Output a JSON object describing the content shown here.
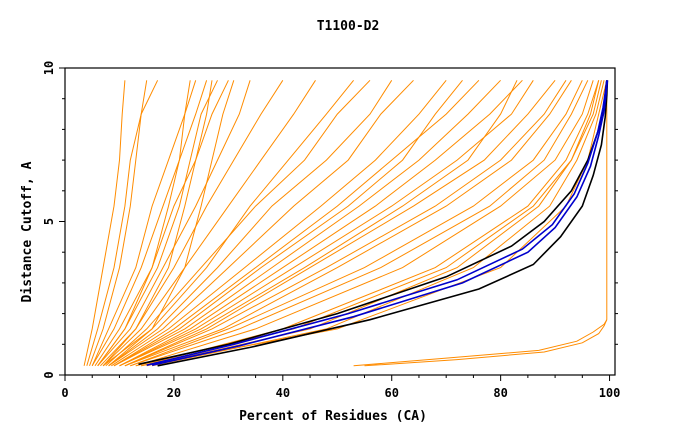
{
  "chart_data": {
    "type": "line",
    "title": "T1100-D2",
    "xlabel": "Percent of Residues (CA)",
    "ylabel": "Distance Cutoff, A",
    "xlim": [
      0,
      101
    ],
    "ylim": [
      0,
      10
    ],
    "x_ticks": [
      "0",
      "20",
      "40",
      "60",
      "80",
      "100"
    ],
    "y_ticks": [
      "0",
      "5",
      "10"
    ],
    "grid": false,
    "legend": "none",
    "colors": {
      "models": "#ff8c00",
      "highlight_black": "#000000",
      "highlight_blue": "#0000cc",
      "axes": "#000000"
    },
    "series": [
      {
        "role": "model",
        "color": "#ff8c00",
        "x": [
          4,
          6,
          9,
          11,
          12,
          14,
          17
        ],
        "y": [
          0.3,
          1.5,
          3.5,
          5.5,
          7.0,
          8.5,
          9.6
        ]
      },
      {
        "role": "model",
        "color": "#ff8c00",
        "x": [
          3.5,
          5,
          7,
          9,
          10,
          10.5,
          11
        ],
        "y": [
          0.3,
          1.5,
          3.5,
          5.5,
          7.0,
          8.5,
          9.6
        ]
      },
      {
        "role": "model",
        "color": "#ff8c00",
        "x": [
          4.5,
          7,
          10,
          12,
          13,
          14,
          15
        ],
        "y": [
          0.3,
          1.5,
          3.5,
          5.5,
          7.0,
          8.5,
          9.6
        ]
      },
      {
        "role": "model",
        "color": "#ff8c00",
        "x": [
          5,
          8,
          13,
          16,
          19,
          22,
          24
        ],
        "y": [
          0.3,
          1.5,
          3.5,
          5.5,
          7.0,
          8.5,
          9.6
        ]
      },
      {
        "role": "model",
        "color": "#ff8c00",
        "x": [
          5,
          9,
          14,
          18,
          21,
          24,
          26
        ],
        "y": [
          0.3,
          1.5,
          3.5,
          5.5,
          7.0,
          8.5,
          9.6
        ]
      },
      {
        "role": "model",
        "color": "#ff8c00",
        "x": [
          5.5,
          10,
          16,
          20,
          24,
          27,
          30
        ],
        "y": [
          0.3,
          1.5,
          3.5,
          5.5,
          7.0,
          8.5,
          9.6
        ]
      },
      {
        "role": "model",
        "color": "#ff8c00",
        "x": [
          6,
          11,
          17,
          21,
          23,
          25,
          28
        ],
        "y": [
          0.3,
          1.5,
          3.5,
          5.5,
          7.0,
          8.5,
          9.6
        ]
      },
      {
        "role": "model",
        "color": "#ff8c00",
        "x": [
          6,
          12,
          18,
          24,
          28,
          32,
          34
        ],
        "y": [
          0.3,
          1.5,
          3.5,
          5.5,
          7.0,
          8.5,
          9.6
        ]
      },
      {
        "role": "model",
        "color": "#ff8c00",
        "x": [
          6.5,
          13,
          20,
          26,
          31,
          36,
          40
        ],
        "y": [
          0.3,
          1.5,
          3.5,
          5.5,
          7.0,
          8.5,
          9.6
        ]
      },
      {
        "role": "model",
        "color": "#ff8c00",
        "x": [
          7,
          14,
          22,
          30,
          36,
          42,
          46
        ],
        "y": [
          0.3,
          1.5,
          3.5,
          5.5,
          7.0,
          8.5,
          9.6
        ]
      },
      {
        "role": "model",
        "color": "#ff8c00",
        "x": [
          7,
          13,
          19,
          22,
          24,
          26,
          27
        ],
        "y": [
          0.3,
          1.5,
          3.5,
          5.5,
          7.0,
          8.5,
          9.6
        ]
      },
      {
        "role": "model",
        "color": "#ff8c00",
        "x": [
          7.5,
          15,
          25,
          35,
          44,
          50,
          56
        ],
        "y": [
          0.3,
          1.5,
          3.5,
          5.5,
          7.0,
          8.5,
          9.6
        ]
      },
      {
        "role": "model",
        "color": "#ff8c00",
        "x": [
          8,
          17,
          28,
          38,
          48,
          56,
          60
        ],
        "y": [
          0.3,
          1.5,
          3.5,
          5.5,
          7.0,
          8.5,
          9.6
        ]
      },
      {
        "role": "model",
        "color": "#ff8c00",
        "x": [
          8,
          18,
          30,
          42,
          52,
          58,
          64
        ],
        "y": [
          0.3,
          1.5,
          3.5,
          5.5,
          7.0,
          8.5,
          9.6
        ]
      },
      {
        "role": "model",
        "color": "#ff8c00",
        "x": [
          8.5,
          19,
          33,
          47,
          57,
          65,
          70
        ],
        "y": [
          0.3,
          1.5,
          3.5,
          5.5,
          7.0,
          8.5,
          9.6
        ]
      },
      {
        "role": "model",
        "color": "#ff8c00",
        "x": [
          9,
          20,
          35,
          50,
          60,
          70,
          76
        ],
        "y": [
          0.3,
          1.5,
          3.5,
          5.5,
          7.0,
          8.5,
          9.6
        ]
      },
      {
        "role": "model",
        "color": "#ff8c00",
        "x": [
          9,
          22,
          38,
          54,
          65,
          74,
          80
        ],
        "y": [
          0.3,
          1.5,
          3.5,
          5.5,
          7.0,
          8.5,
          9.6
        ]
      },
      {
        "role": "model",
        "color": "#ff8c00",
        "x": [
          10,
          23,
          40,
          57,
          68,
          78,
          84
        ],
        "y": [
          0.3,
          1.5,
          3.5,
          5.5,
          7.0,
          8.5,
          9.6
        ]
      },
      {
        "role": "model",
        "color": "#ff8c00",
        "x": [
          10,
          24,
          42,
          60,
          72,
          82,
          86
        ],
        "y": [
          0.3,
          1.5,
          3.5,
          5.5,
          7.0,
          8.5,
          9.6
        ]
      },
      {
        "role": "model",
        "color": "#ff8c00",
        "x": [
          11,
          26,
          45,
          64,
          77,
          85,
          90
        ],
        "y": [
          0.3,
          1.5,
          3.5,
          5.5,
          7.0,
          8.5,
          9.6
        ]
      },
      {
        "role": "model",
        "color": "#ff8c00",
        "x": [
          11,
          27,
          48,
          68,
          80,
          88,
          92
        ],
        "y": [
          0.3,
          1.5,
          3.5,
          5.5,
          7.0,
          8.5,
          9.6
        ]
      },
      {
        "role": "model",
        "color": "#ff8c00",
        "x": [
          12,
          30,
          55,
          75,
          86,
          92,
          95
        ],
        "y": [
          0.3,
          1.5,
          3.5,
          5.5,
          7.0,
          8.5,
          9.6
        ]
      },
      {
        "role": "model",
        "color": "#ff8c00",
        "x": [
          13,
          35,
          62,
          80,
          90,
          95,
          97
        ],
        "y": [
          0.3,
          1.5,
          3.5,
          5.5,
          7.0,
          8.5,
          9.6
        ]
      },
      {
        "role": "model",
        "color": "#ff8c00",
        "x": [
          14,
          40,
          68,
          85,
          92,
          96,
          98
        ],
        "y": [
          0.3,
          1.5,
          3.5,
          5.5,
          7.0,
          8.5,
          9.6
        ]
      },
      {
        "role": "model",
        "color": "#ff8c00",
        "x": [
          15,
          45,
          72,
          87,
          93,
          97,
          98.5
        ],
        "y": [
          0.3,
          1.5,
          3.5,
          5.5,
          7.0,
          8.5,
          9.6
        ]
      },
      {
        "role": "model",
        "color": "#ff8c00",
        "x": [
          16,
          48,
          75,
          89,
          94,
          97.5,
          99
        ],
        "y": [
          0.3,
          1.5,
          3.5,
          5.5,
          7.0,
          8.5,
          9.6
        ]
      },
      {
        "role": "model",
        "color": "#ff8c00",
        "x": [
          12,
          32,
          58,
          78,
          88,
          93,
          96
        ],
        "y": [
          0.3,
          1.5,
          3.5,
          5.5,
          7.0,
          8.5,
          9.6
        ]
      },
      {
        "role": "model",
        "color": "#ff8c00",
        "x": [
          10,
          25,
          44,
          62,
          74,
          80,
          83
        ],
        "y": [
          0.3,
          1.5,
          3.5,
          5.5,
          7.0,
          8.5,
          9.6
        ]
      },
      {
        "role": "model",
        "color": "#ff8c00",
        "x": [
          9,
          21,
          36,
          52,
          62,
          68,
          73
        ],
        "y": [
          0.3,
          1.5,
          3.5,
          5.5,
          7.0,
          8.5,
          9.6
        ]
      },
      {
        "role": "model",
        "color": "#ff8c00",
        "x": [
          7,
          16,
          26,
          34,
          41,
          48,
          53
        ],
        "y": [
          0.3,
          1.5,
          3.5,
          5.5,
          7.0,
          8.5,
          9.6
        ]
      },
      {
        "role": "model",
        "color": "#ff8c00",
        "x": [
          6,
          11,
          16,
          19,
          21,
          22,
          23
        ],
        "y": [
          0.3,
          1.5,
          3.5,
          5.5,
          7.0,
          8.5,
          9.6
        ]
      },
      {
        "role": "model",
        "color": "#ff8c00",
        "x": [
          8,
          16,
          22,
          25,
          27,
          29,
          31
        ],
        "y": [
          0.3,
          1.5,
          3.5,
          5.5,
          7.0,
          8.5,
          9.6
        ]
      },
      {
        "role": "model",
        "color": "#ff8c00",
        "x": [
          14,
          50,
          80,
          92,
          96,
          98,
          99.5
        ],
        "y": [
          0.3,
          1.5,
          3.5,
          5.5,
          7.0,
          8.5,
          9.6
        ]
      },
      {
        "role": "model",
        "color": "#ff8c00",
        "x": [
          13,
          42,
          70,
          86,
          93,
          96.5,
          98
        ],
        "y": [
          0.3,
          1.5,
          3.5,
          5.5,
          7.0,
          8.5,
          9.6
        ]
      },
      {
        "role": "model",
        "color": "#ff8c00",
        "x": [
          11,
          29,
          50,
          70,
          82,
          89,
          93
        ],
        "y": [
          0.3,
          1.5,
          3.5,
          5.5,
          7.0,
          8.5,
          9.6
        ]
      },
      {
        "role": "model",
        "color": "#ff8c00",
        "x": [
          53,
          70,
          87,
          94,
          97,
          99,
          99.5
        ],
        "y": [
          0.3,
          0.55,
          0.8,
          1.1,
          1.4,
          1.65,
          1.8
        ]
      },
      {
        "role": "model",
        "color": "#ff8c00",
        "x": [
          55,
          72,
          88,
          95,
          98,
          99,
          99.5
        ],
        "y": [
          0.3,
          0.5,
          0.75,
          1.05,
          1.35,
          1.6,
          1.8
        ]
      },
      {
        "role": "model",
        "color": "#ff8c00",
        "x": [
          99.5,
          99.5
        ],
        "y": [
          1.8,
          9.6
        ]
      },
      {
        "role": "highlight",
        "color": "#000000",
        "x": [
          13.5,
          30,
          50,
          70,
          82,
          88,
          93,
          96,
          98,
          99,
          99.3,
          99.5
        ],
        "y": [
          0.35,
          1.0,
          2.0,
          3.2,
          4.2,
          5.0,
          6.0,
          7.0,
          8.0,
          8.8,
          9.3,
          9.6
        ]
      },
      {
        "role": "highlight",
        "color": "#000000",
        "x": [
          17,
          34,
          56,
          76,
          86,
          91,
          95,
          97,
          98.5,
          99.2,
          99.5,
          99.6
        ],
        "y": [
          0.3,
          0.9,
          1.8,
          2.8,
          3.6,
          4.5,
          5.5,
          6.5,
          7.5,
          8.4,
          9.1,
          9.6
        ]
      },
      {
        "role": "highlight",
        "color": "#0000cc",
        "x": [
          16,
          32,
          53,
          73,
          85,
          90,
          94,
          96.5,
          98,
          99,
          99.4,
          99.6
        ],
        "y": [
          0.32,
          0.95,
          1.9,
          3.0,
          4.0,
          4.8,
          5.8,
          6.8,
          7.8,
          8.6,
          9.2,
          9.6
        ]
      },
      {
        "role": "highlight",
        "color": "#0000cc",
        "x": [
          15,
          31,
          52,
          72,
          84,
          89.5,
          93.5,
          96,
          97.8,
          98.8,
          99.3,
          99.5
        ],
        "y": [
          0.32,
          1.0,
          2.0,
          3.1,
          4.1,
          4.9,
          5.9,
          6.9,
          7.9,
          8.7,
          9.3,
          9.6
        ]
      }
    ]
  }
}
